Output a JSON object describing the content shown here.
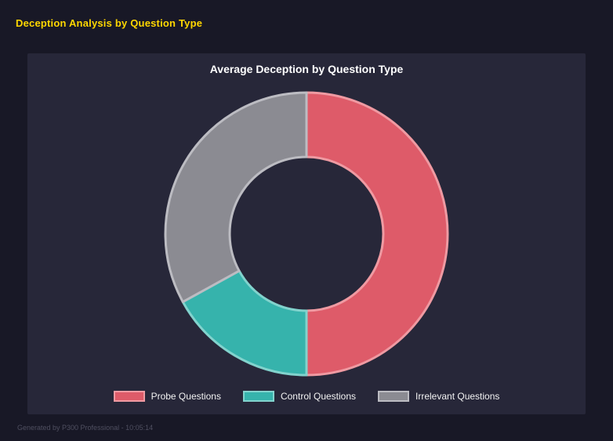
{
  "page": {
    "title": "Deception Analysis by Question Type",
    "footer": "Generated by P300 Professional - 10:05:14"
  },
  "chart_data": {
    "type": "pie",
    "subtype": "donut",
    "title": "Average Deception by Question Type",
    "legend_position": "bottom",
    "start_angle_deg": -90,
    "direction": "clockwise",
    "slices": [
      {
        "label": "Probe Questions",
        "value": 50,
        "color": "#de5b69",
        "border": "#ef9aa2"
      },
      {
        "label": "Control Questions",
        "value": 17,
        "color": "#36b3ac",
        "border": "#82d3cd"
      },
      {
        "label": "Irrelevant Questions",
        "value": 33,
        "color": "#8b8b92",
        "border": "#bcbcc2"
      }
    ]
  }
}
